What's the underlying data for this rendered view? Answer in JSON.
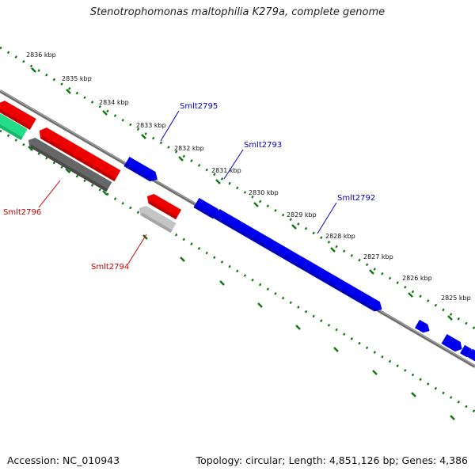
{
  "title": "Stenotrophomonas maltophilia K279a, complete genome",
  "footer": {
    "accession": "Accession: NC_010943",
    "summary": "Topology: circular; Length: 4,851,126 bp; Genes: 4,386"
  },
  "scale_ticks": [
    "2836 kbp",
    "2835 kbp",
    "2834 kbp",
    "2833 kbp",
    "2832 kbp",
    "2831 kbp",
    "2830 kbp",
    "2829 kbp",
    "2828 kbp",
    "2827 kbp",
    "2826 kbp",
    "2825 kbp"
  ],
  "gene_labels": [
    {
      "name": "Smlt2795",
      "strand": "forward",
      "color": "#0000cc"
    },
    {
      "name": "Smlt2793",
      "strand": "forward",
      "color": "#0000cc"
    },
    {
      "name": "Smlt2792",
      "strand": "forward",
      "color": "#0000cc"
    },
    {
      "name": "Smlt2796",
      "strand": "reverse",
      "color": "#cc0000"
    },
    {
      "name": "Smlt2794",
      "strand": "reverse",
      "color": "#cc0000"
    }
  ],
  "colors": {
    "forward_cds": "#0000ee",
    "reverse_cds": "#ee0000",
    "reverse_other": "#666666",
    "reverse_pseudo": "#bbbbbb",
    "rna": "#22dd88",
    "backbone": "#777777",
    "ticks": "#117711"
  }
}
